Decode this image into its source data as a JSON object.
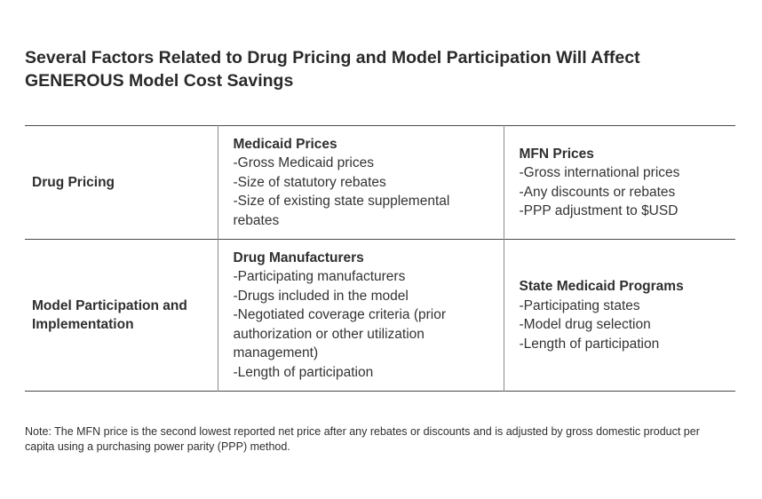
{
  "title": {
    "line1": "Several Factors Related to Drug Pricing and Model Participation Will Affect",
    "line2": "GENEROUS Model Cost Savings"
  },
  "table": {
    "rows": [
      {
        "label": "Drug Pricing",
        "middle": {
          "heading": "Medicaid Prices",
          "items": [
            "-Gross Medicaid prices",
            "-Size of statutory rebates",
            "-Size of existing state supplemental rebates"
          ]
        },
        "right": {
          "heading": "MFN Prices",
          "items": [
            "-Gross international prices",
            "-Any discounts or rebates",
            "-PPP adjustment to $USD"
          ]
        }
      },
      {
        "label": "Model Participation and Implementation",
        "middle": {
          "heading": "Drug Manufacturers",
          "items": [
            "-Participating manufacturers",
            "-Drugs included in the model",
            "-Negotiated coverage criteria (prior authorization or other utilization management)",
            "-Length of participation"
          ]
        },
        "right": {
          "heading": "State Medicaid Programs",
          "items": [
            "-Participating states",
            "-Model drug selection",
            "-Length of participation"
          ]
        }
      }
    ]
  },
  "note": "Note: The MFN price is the second lowest reported net price after any rebates or discounts and is adjusted by gross domestic product per capita using a purchasing power parity (PPP) method."
}
